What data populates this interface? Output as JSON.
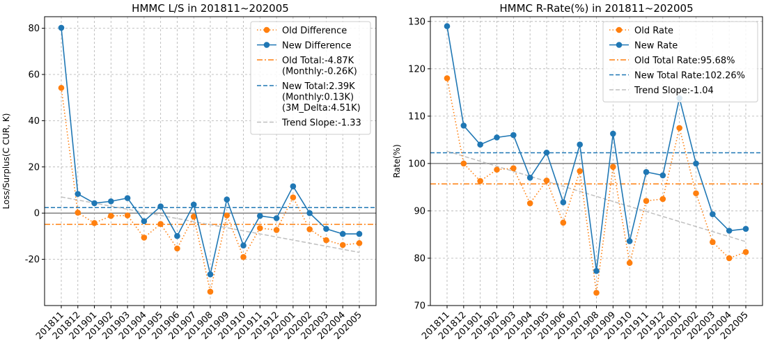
{
  "chart_data": [
    {
      "type": "line",
      "title": "HMMC L/S in 201811~202005",
      "xlabel": "",
      "ylabel": "Loss/Surplus(C CUR, K)",
      "categories": [
        "201811",
        "201812",
        "201901",
        "201902",
        "201903",
        "201904",
        "201905",
        "201906",
        "201907",
        "201908",
        "201909",
        "201910",
        "201911",
        "201912",
        "202001",
        "202002",
        "202003",
        "202004",
        "202005"
      ],
      "ylim": [
        -40,
        85
      ],
      "yticks": [
        -20,
        0,
        20,
        40,
        60,
        80
      ],
      "grid": true,
      "legend_position": "top-right",
      "series": [
        {
          "name": "Old Difference",
          "style": "dotted",
          "color": "#ff7f0e",
          "values": [
            54.2,
            0.2,
            -4.3,
            -1.2,
            -1.0,
            -10.6,
            -4.7,
            -15.3,
            -1.5,
            -34.0,
            -1.0,
            -19.0,
            -6.5,
            -7.3,
            6.8,
            -7.0,
            -11.7,
            -13.8,
            -13.0
          ]
        },
        {
          "name": "New Difference",
          "style": "solid",
          "color": "#1f77b4",
          "values": [
            80.2,
            8.3,
            4.3,
            5.1,
            6.5,
            -3.5,
            2.9,
            -9.9,
            3.7,
            -26.5,
            5.9,
            -14.0,
            -1.2,
            -2.2,
            11.6,
            0.0,
            -6.8,
            -9.0,
            -9.0
          ]
        }
      ],
      "reference_lines": [
        {
          "name": "Old Total:-4.87K\n(Monthly:-0.26K)",
          "style": "dashdot",
          "color": "#ff7f0e",
          "y": -4.87
        },
        {
          "name": "New Total:2.39K\n(Monthly:0.13K)\n(3M_Delta:4.51K)",
          "style": "dashed",
          "color": "#1f77b4",
          "y": 2.39
        }
      ],
      "baseline": {
        "y": 0,
        "color": "#808080"
      },
      "trend": {
        "name": "Trend Slope:-1.33",
        "style": "dashed",
        "color": "#bfbfbf",
        "y_start": 7.0,
        "y_end": -17.0
      }
    },
    {
      "type": "line",
      "title": "HMMC R-Rate(%) in 201811~202005",
      "xlabel": "",
      "ylabel": "Rate(%)",
      "categories": [
        "201811",
        "201812",
        "201901",
        "201902",
        "201903",
        "201904",
        "201905",
        "201906",
        "201907",
        "201908",
        "201909",
        "201910",
        "201911",
        "201912",
        "202001",
        "202002",
        "202003",
        "202004",
        "202005"
      ],
      "ylim": [
        70,
        131
      ],
      "yticks": [
        70,
        80,
        90,
        100,
        110,
        120,
        130
      ],
      "grid": true,
      "legend_position": "top-right",
      "series": [
        {
          "name": "Old Rate",
          "style": "dotted",
          "color": "#ff7f0e",
          "values": [
            118.0,
            100.0,
            96.3,
            98.7,
            99.0,
            91.6,
            96.4,
            87.5,
            98.4,
            72.7,
            99.3,
            79.0,
            92.1,
            92.5,
            107.5,
            93.7,
            83.4,
            80.0,
            81.3
          ]
        },
        {
          "name": "New Rate",
          "style": "solid",
          "color": "#1f77b4",
          "values": [
            129.0,
            108.0,
            104.0,
            105.5,
            106.0,
            97.0,
            102.3,
            91.8,
            104.0,
            77.3,
            106.3,
            83.6,
            98.2,
            97.5,
            113.8,
            100.0,
            89.3,
            85.8,
            86.2
          ]
        }
      ],
      "reference_lines": [
        {
          "name": "Old Total Rate:95.68%",
          "style": "dashdot",
          "color": "#ff7f0e",
          "y": 95.68
        },
        {
          "name": "New Total Rate:102.26%",
          "style": "dashed",
          "color": "#1f77b4",
          "y": 102.26
        }
      ],
      "baseline": {
        "y": 100,
        "color": "#808080"
      },
      "trend": {
        "name": "Trend Slope:-1.04",
        "style": "dashed",
        "color": "#bfbfbf",
        "y_start": 102.6,
        "y_end": 83.5
      }
    }
  ]
}
